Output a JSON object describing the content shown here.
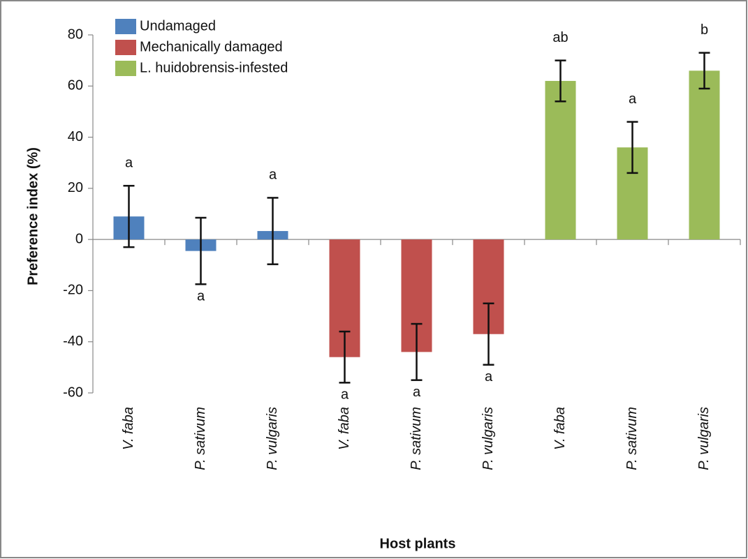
{
  "chart_data": {
    "type": "bar",
    "y_label": "Preference index (%)",
    "x_label": "Host plants",
    "categories": [
      "V. faba",
      "P. sativum",
      "P. vulgaris",
      "V. faba",
      "P. sativum",
      "P. vulgaris",
      "V. faba",
      "P. sativum",
      "P. vulgaris"
    ],
    "series": [
      {
        "name": "Undamaged",
        "color": "#4f81bd",
        "values": [
          9,
          -4.5,
          3.3,
          null,
          null,
          null,
          null,
          null,
          null
        ],
        "errors": [
          12,
          13,
          13,
          null,
          null,
          null,
          null,
          null,
          null
        ]
      },
      {
        "name": "Mechanically damaged",
        "color": "#c0504d",
        "values": [
          null,
          null,
          null,
          -46,
          -44,
          -37,
          null,
          null,
          null
        ],
        "errors": [
          null,
          null,
          null,
          10,
          11,
          12,
          null,
          null,
          null
        ]
      },
      {
        "name": "L. huidobrensis-infested",
        "color": "#9bbb59",
        "values": [
          null,
          null,
          null,
          null,
          null,
          null,
          62,
          36,
          66
        ],
        "errors": [
          null,
          null,
          null,
          null,
          null,
          null,
          8,
          10,
          7
        ]
      }
    ],
    "annotations": [
      "a",
      "a",
      "a",
      "a",
      "a",
      "a",
      "ab",
      "a",
      "b"
    ],
    "ylim": [
      -60,
      80
    ],
    "yticks": [
      -60,
      -40,
      -20,
      0,
      20,
      40,
      60,
      80
    ],
    "legend": "upper-left"
  }
}
